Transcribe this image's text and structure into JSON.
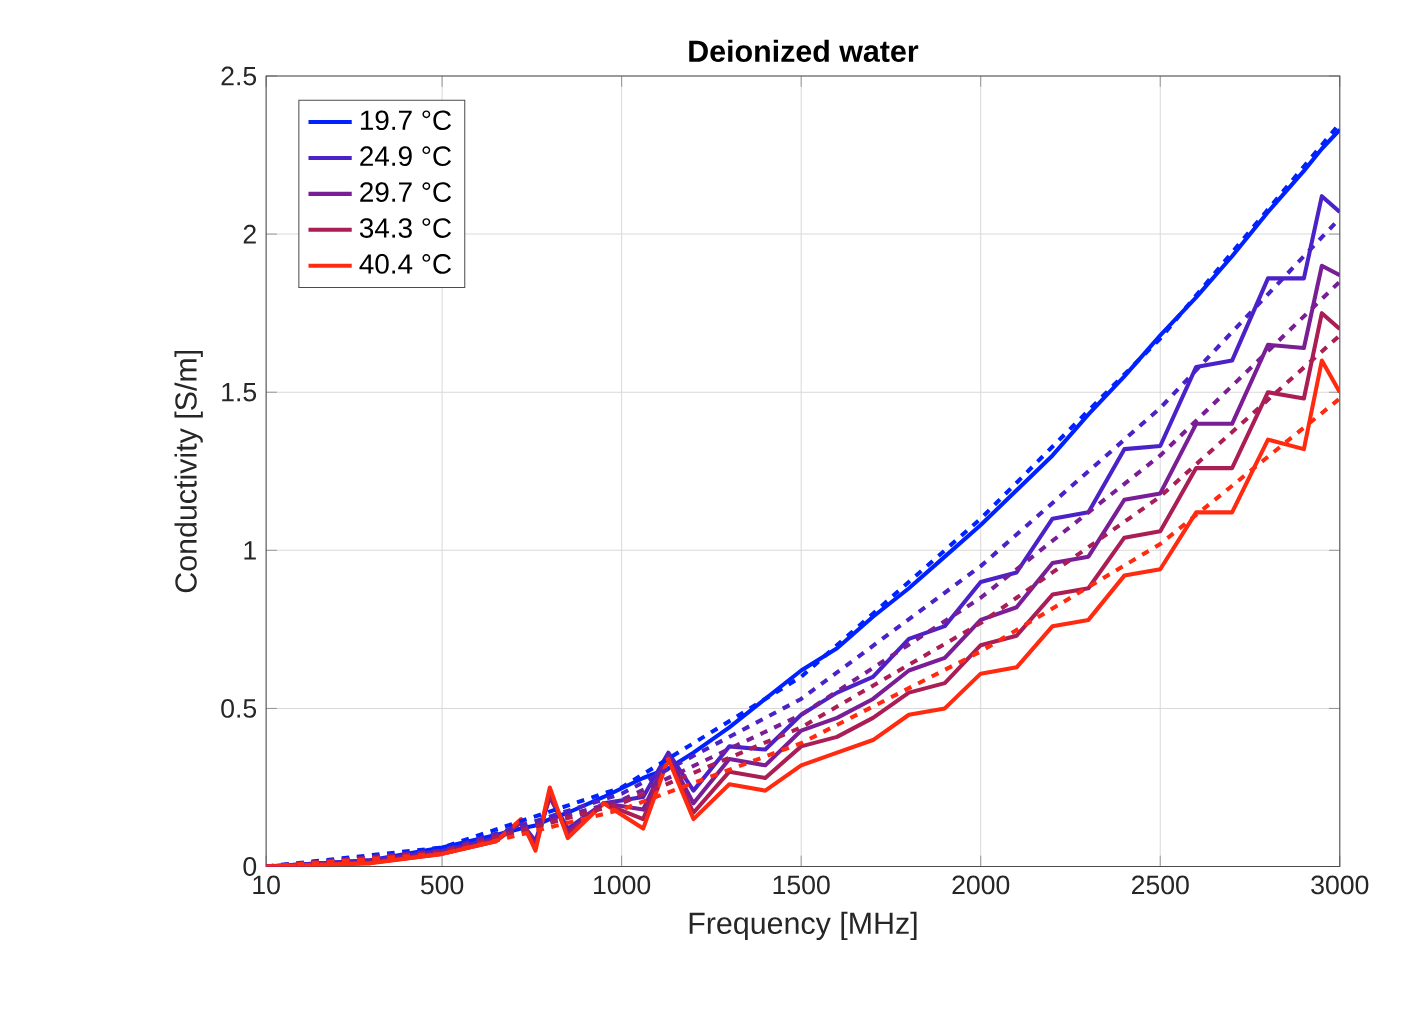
{
  "chart_data": {
    "type": "line",
    "title": "Deionized water",
    "xlabel": "Frequency [MHz]",
    "ylabel": "Conductivity [S/m]",
    "x": [
      10,
      300,
      500,
      650,
      720,
      760,
      800,
      850,
      950,
      1060,
      1130,
      1200,
      1300,
      1400,
      1500,
      1600,
      1700,
      1800,
      1900,
      2000,
      2100,
      2200,
      2300,
      2400,
      2500,
      2600,
      2700,
      2800,
      2900,
      2950,
      3000
    ],
    "series": [
      {
        "name": "19.7 °C",
        "color": "#0022ff",
        "line_style": "solid",
        "values": [
          0,
          0.02,
          0.06,
          0.1,
          0.12,
          0.13,
          0.15,
          0.17,
          0.22,
          0.28,
          0.31,
          0.36,
          0.44,
          0.53,
          0.62,
          0.69,
          0.79,
          0.88,
          0.98,
          1.08,
          1.19,
          1.3,
          1.43,
          1.55,
          1.68,
          1.8,
          1.93,
          2.07,
          2.2,
          2.27,
          2.33
        ]
      },
      {
        "name": "24.9 °C",
        "color": "#4a22c8",
        "line_style": "solid",
        "values": [
          0,
          0.02,
          0.05,
          0.09,
          0.14,
          0.08,
          0.22,
          0.12,
          0.2,
          0.22,
          0.36,
          0.24,
          0.38,
          0.37,
          0.48,
          0.55,
          0.6,
          0.72,
          0.76,
          0.9,
          0.93,
          1.1,
          1.12,
          1.32,
          1.33,
          1.58,
          1.6,
          1.86,
          1.86,
          2.12,
          2.07
        ]
      },
      {
        "name": "29.7 °C",
        "color": "#7a1e96",
        "line_style": "solid",
        "values": [
          0,
          0.015,
          0.045,
          0.085,
          0.14,
          0.07,
          0.22,
          0.11,
          0.2,
          0.18,
          0.35,
          0.2,
          0.34,
          0.32,
          0.43,
          0.47,
          0.53,
          0.62,
          0.66,
          0.78,
          0.82,
          0.96,
          0.98,
          1.16,
          1.18,
          1.4,
          1.4,
          1.65,
          1.64,
          1.9,
          1.87
        ]
      },
      {
        "name": "34.3 °C",
        "color": "#aa1e55",
        "line_style": "solid",
        "values": [
          0,
          0.012,
          0.04,
          0.08,
          0.14,
          0.06,
          0.23,
          0.1,
          0.2,
          0.15,
          0.34,
          0.17,
          0.3,
          0.28,
          0.38,
          0.41,
          0.47,
          0.55,
          0.58,
          0.7,
          0.73,
          0.86,
          0.88,
          1.04,
          1.06,
          1.26,
          1.26,
          1.5,
          1.48,
          1.75,
          1.7
        ]
      },
      {
        "name": "40.4 °C",
        "color": "#ff2a10",
        "line_style": "solid",
        "values": [
          0,
          0.01,
          0.04,
          0.08,
          0.15,
          0.05,
          0.25,
          0.09,
          0.2,
          0.12,
          0.34,
          0.15,
          0.26,
          0.24,
          0.32,
          0.36,
          0.4,
          0.48,
          0.5,
          0.61,
          0.63,
          0.76,
          0.78,
          0.92,
          0.94,
          1.12,
          1.12,
          1.35,
          1.32,
          1.6,
          1.5
        ]
      },
      {
        "color": "#0022ff",
        "line_style": "dashed",
        "x": [
          10,
          500,
          1000,
          1500,
          2000,
          2500,
          3000
        ],
        "values": [
          0,
          0.06,
          0.25,
          0.6,
          1.1,
          1.67,
          2.35
        ]
      },
      {
        "color": "#4a22c8",
        "line_style": "dashed",
        "x": [
          10,
          500,
          1000,
          1500,
          2000,
          2500,
          3000
        ],
        "values": [
          0,
          0.05,
          0.23,
          0.53,
          0.95,
          1.45,
          2.05
        ]
      },
      {
        "color": "#7a1e96",
        "line_style": "dashed",
        "x": [
          10,
          500,
          1000,
          1500,
          2000,
          2500,
          3000
        ],
        "values": [
          0,
          0.05,
          0.21,
          0.48,
          0.85,
          1.3,
          1.85
        ]
      },
      {
        "color": "#aa1e55",
        "line_style": "dashed",
        "x": [
          10,
          500,
          1000,
          1500,
          2000,
          2500,
          3000
        ],
        "values": [
          0,
          0.045,
          0.2,
          0.44,
          0.77,
          1.17,
          1.68
        ]
      },
      {
        "color": "#ff2a10",
        "line_style": "dashed",
        "x": [
          10,
          500,
          1000,
          1500,
          2000,
          2500,
          3000
        ],
        "values": [
          0,
          0.04,
          0.18,
          0.39,
          0.68,
          1.02,
          1.48
        ]
      }
    ],
    "xlim": [
      10,
      3000
    ],
    "ylim": [
      0,
      2.5
    ],
    "xticks": [
      10,
      500,
      1000,
      1500,
      2000,
      2500,
      3000
    ],
    "yticks": [
      0,
      0.5,
      1,
      1.5,
      2,
      2.5
    ],
    "grid": true,
    "legend": "top left",
    "marker": "none"
  }
}
